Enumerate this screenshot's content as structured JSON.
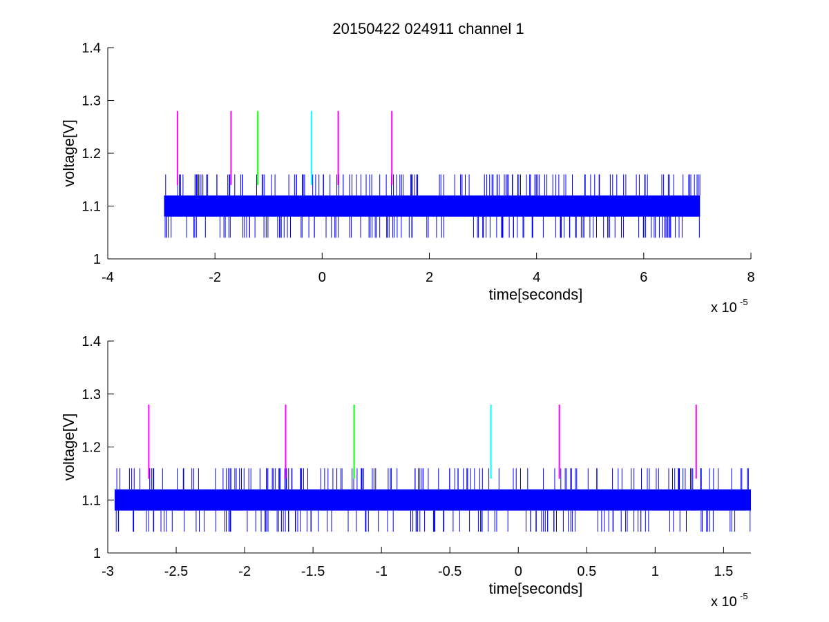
{
  "figure": {
    "title": "20150422 024911 channel 1"
  },
  "colors": {
    "trace": "#0000ff",
    "axes": "#000000",
    "background": "#ffffff",
    "marker_magenta": "#ff00ff",
    "marker_green": "#00ff00",
    "marker_cyan": "#00ffff"
  },
  "chart_data": [
    {
      "type": "line",
      "title": "20150422 024911 channel 1",
      "xlabel": "time[seconds]",
      "ylabel": "voltage[V]",
      "x_exponent_label": "x 10",
      "x_exponent_power": "-5",
      "xlim": [
        -4,
        8
      ],
      "ylim": [
        1,
        1.4
      ],
      "xticks": [
        -4,
        -2,
        0,
        2,
        4,
        6,
        8
      ],
      "xtick_labels": [
        "-4",
        "-2",
        "0",
        "2",
        "4",
        "6",
        "8"
      ],
      "yticks": [
        1,
        1.1,
        1.2,
        1.3,
        1.4
      ],
      "ytick_labels": [
        "1",
        "1.1",
        "1.2",
        "1.3",
        "1.4"
      ],
      "grid": false,
      "series": [
        {
          "x_range": [
            -2.95,
            7.05
          ],
          "band": [
            1.08,
            1.12
          ],
          "spike_high": 1.16,
          "spike_low": 1.04,
          "spike_count_high": 150,
          "spike_count_low": 130,
          "color": "#0000ff"
        }
      ],
      "markers": [
        {
          "x": -2.7,
          "y": [
            1.14,
            1.28
          ],
          "color": "#ff00ff"
        },
        {
          "x": -1.7,
          "y": [
            1.14,
            1.28
          ],
          "color": "#ff00ff"
        },
        {
          "x": -1.2,
          "y": [
            1.14,
            1.28
          ],
          "color": "#00ff00"
        },
        {
          "x": -0.2,
          "y": [
            1.14,
            1.28
          ],
          "color": "#00ffff"
        },
        {
          "x": 0.3,
          "y": [
            1.14,
            1.28
          ],
          "color": "#ff00ff"
        },
        {
          "x": 1.3,
          "y": [
            1.14,
            1.28
          ],
          "color": "#ff00ff"
        }
      ]
    },
    {
      "type": "line",
      "title": "",
      "xlabel": "time[seconds]",
      "ylabel": "voltage[V]",
      "x_exponent_label": "x 10",
      "x_exponent_power": "-5",
      "xlim": [
        -3,
        1.7
      ],
      "ylim": [
        1,
        1.4
      ],
      "xticks": [
        -3,
        -2.5,
        -2,
        -1.5,
        -1,
        -0.5,
        0,
        0.5,
        1,
        1.5
      ],
      "xtick_labels": [
        "-3",
        "-2.5",
        "-2",
        "-1.5",
        "-1",
        "-0.5",
        "0",
        "0.5",
        "1",
        "1.5"
      ],
      "yticks": [
        1,
        1.1,
        1.2,
        1.3,
        1.4
      ],
      "ytick_labels": [
        "1",
        "1.1",
        "1.2",
        "1.3",
        "1.4"
      ],
      "grid": false,
      "series": [
        {
          "x_range": [
            -2.95,
            1.7
          ],
          "band": [
            1.08,
            1.12
          ],
          "spike_high": 1.16,
          "spike_low": 1.04,
          "spike_count_high": 150,
          "spike_count_low": 130,
          "color": "#0000ff"
        }
      ],
      "markers": [
        {
          "x": -2.7,
          "y": [
            1.14,
            1.28
          ],
          "color": "#ff00ff"
        },
        {
          "x": -1.7,
          "y": [
            1.14,
            1.28
          ],
          "color": "#ff00ff"
        },
        {
          "x": -1.2,
          "y": [
            1.14,
            1.28
          ],
          "color": "#00ff00"
        },
        {
          "x": -0.2,
          "y": [
            1.14,
            1.28
          ],
          "color": "#00ffff"
        },
        {
          "x": 0.3,
          "y": [
            1.14,
            1.28
          ],
          "color": "#ff00ff"
        },
        {
          "x": 1.3,
          "y": [
            1.14,
            1.28
          ],
          "color": "#ff00ff"
        }
      ]
    }
  ]
}
